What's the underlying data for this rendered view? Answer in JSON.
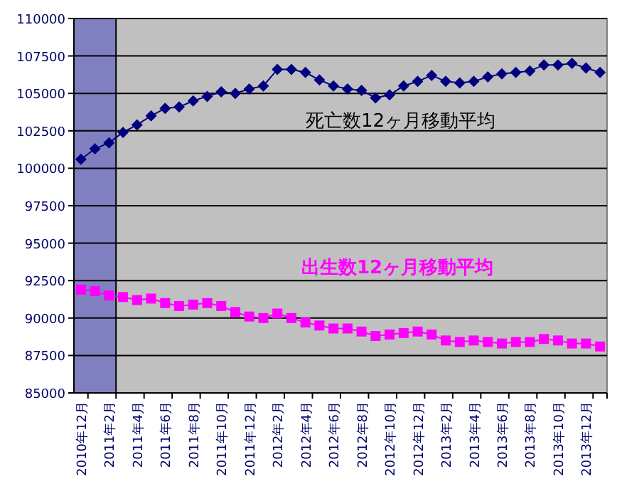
{
  "chart_data": {
    "type": "line",
    "categories": [
      "2010年12月",
      null,
      "2011年2月",
      null,
      "2011年4月",
      null,
      "2011年6月",
      null,
      "2011年8月",
      null,
      "2011年10月",
      null,
      "2011年12月",
      null,
      "2012年2月",
      null,
      "2012年4月",
      null,
      "2012年6月",
      null,
      "2012年8月",
      null,
      "2012年10月",
      null,
      "2012年12月",
      null,
      "2013年2月",
      null,
      "2013年4月",
      null,
      "2013年6月",
      null,
      "2013年8月",
      null,
      "2013年10月",
      null,
      "2013年12月",
      null
    ],
    "series": [
      {
        "name": "死亡数12ヶ月移動平均",
        "color": "#000080",
        "marker": "diamond",
        "values": [
          100600,
          101300,
          101700,
          102400,
          102900,
          103500,
          104000,
          104100,
          104500,
          104800,
          105100,
          105000,
          105300,
          105500,
          106600,
          106600,
          106400,
          105900,
          105500,
          105300,
          105200,
          104700,
          104900,
          105500,
          105800,
          106200,
          105800,
          105700,
          105800,
          106100,
          106300,
          106400,
          106500,
          106900,
          106900,
          107000,
          106700,
          106400
        ]
      },
      {
        "name": "出生数12ヶ月移動平均",
        "color": "#ff00ff",
        "marker": "square",
        "values": [
          91900,
          91800,
          91500,
          91400,
          91200,
          91300,
          91000,
          90800,
          90900,
          91000,
          90800,
          90400,
          90100,
          90000,
          90300,
          90000,
          89700,
          89500,
          89300,
          89300,
          89100,
          88800,
          88900,
          89000,
          89100,
          88900,
          88500,
          88400,
          88500,
          88400,
          88300,
          88400,
          88400,
          88600,
          88500,
          88300,
          88300,
          88100
        ]
      }
    ],
    "ylim": [
      85000,
      110000
    ],
    "yticks": [
      85000,
      87500,
      90000,
      92500,
      95000,
      97500,
      100000,
      102500,
      105000,
      107500,
      110000
    ],
    "grid": "y",
    "bands": [
      {
        "axis": "x",
        "from": "2010年12月",
        "to": "2011年2月",
        "color": "#8080c0"
      }
    ]
  }
}
